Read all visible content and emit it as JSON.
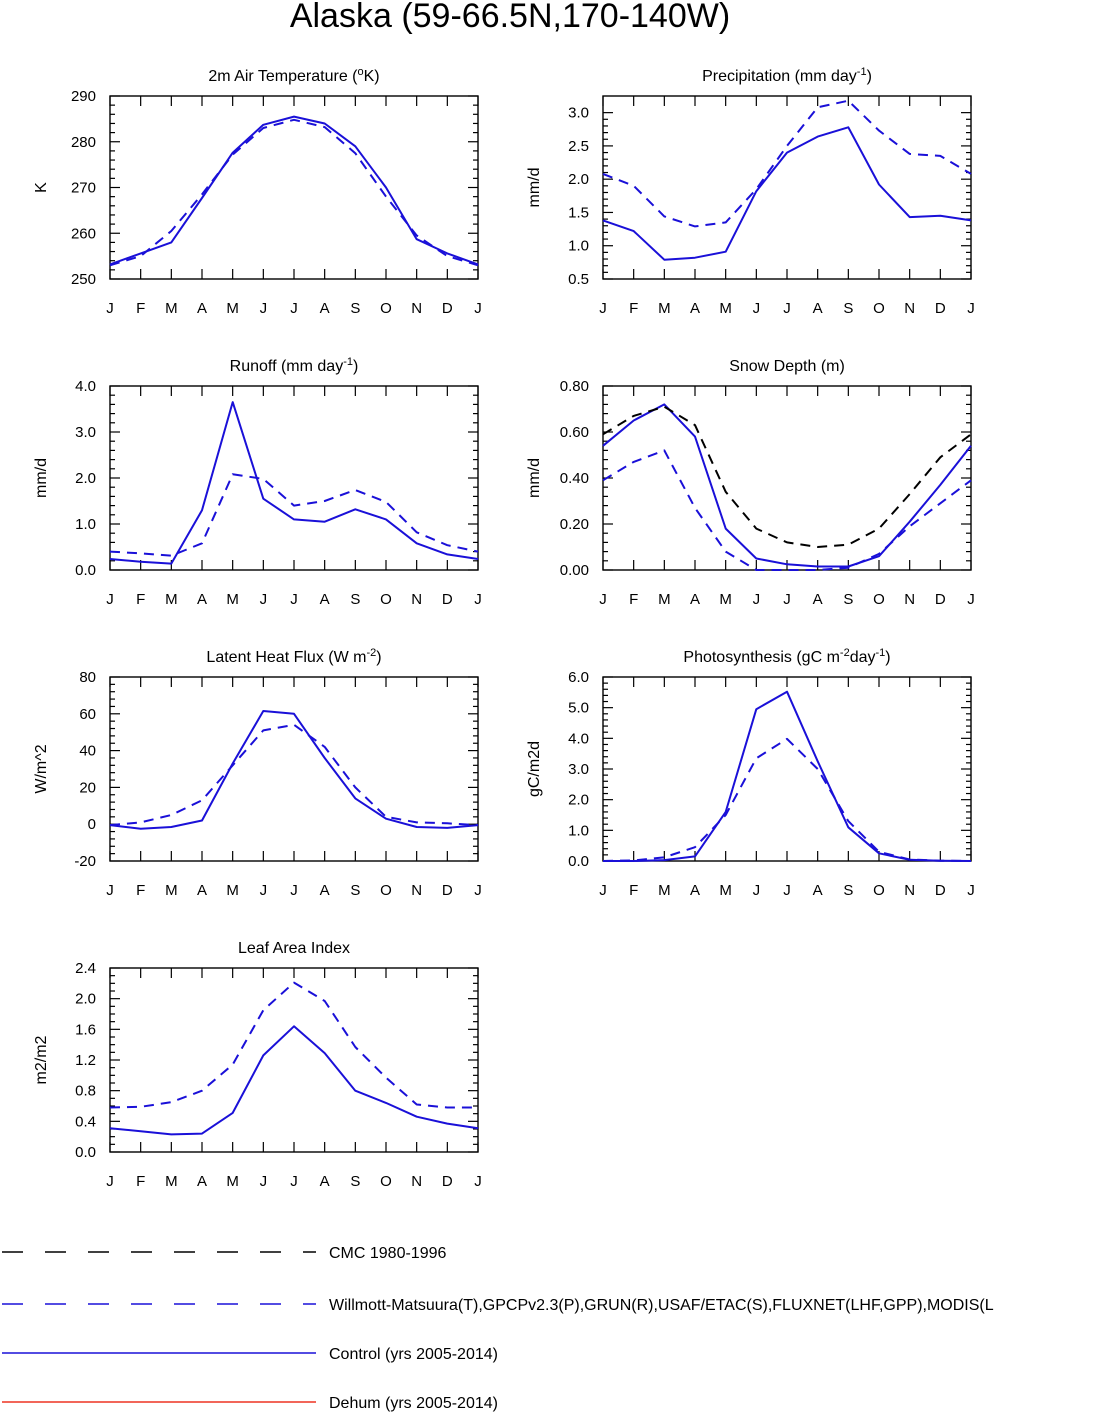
{
  "title": "Alaska (59-66.5N,170-140W)",
  "colors": {
    "model": "#1a10d8",
    "obs": "#1a10d8",
    "cmc": "#000000",
    "dehum": "#ee3322",
    "axis": "#000000"
  },
  "months": [
    "J",
    "F",
    "M",
    "A",
    "M",
    "J",
    "J",
    "A",
    "S",
    "O",
    "N",
    "D",
    "J"
  ],
  "legend": [
    {
      "label": "CMC 1980-1996",
      "style": "dash",
      "color": "#000000"
    },
    {
      "label": "Willmott-Matsuura(T),GPCPv2.3(P),GRUN(R),USAF/ETAC(S),FLUXNET(LHF,GPP),MODIS(L",
      "style": "dash",
      "color": "#1a10d8"
    },
    {
      "label": "Control (yrs 2005-2014)",
      "style": "solid",
      "color": "#1a10d8"
    },
    {
      "label": "Dehum (yrs 2005-2014)",
      "style": "solid",
      "color": "#ee3322"
    }
  ],
  "chart_data": [
    {
      "type": "line",
      "title": "2m Air Temperature (°K)",
      "title_parts": [
        {
          "t": "2m Air Temperature ("
        },
        {
          "t": "o",
          "sup": true
        },
        {
          "t": "K)"
        }
      ],
      "xlabel": "",
      "ylabel": "K",
      "ylim": [
        250,
        290
      ],
      "yticks": [
        250,
        260,
        270,
        280,
        290
      ],
      "ytick_labels": [
        "250",
        "260",
        "270",
        "280",
        "290"
      ],
      "minor_per_major": 5,
      "series": [
        {
          "name": "Control (yrs 2005-2014)",
          "style": "solid",
          "values": [
            253.2,
            255.6,
            258.0,
            267.7,
            277.6,
            283.7,
            285.5,
            284.0,
            279.0,
            270.0,
            258.7,
            255.6,
            253.2
          ]
        },
        {
          "name": "Willmott-Matsuura(T)",
          "style": "dash",
          "values": [
            253.0,
            255.0,
            260.5,
            268.5,
            277.2,
            283.0,
            284.8,
            283.2,
            277.5,
            268.0,
            259.5,
            255.0,
            253.0
          ]
        }
      ]
    },
    {
      "type": "line",
      "title": "Precipitation (mm day-1)",
      "title_parts": [
        {
          "t": "Precipitation (mm day"
        },
        {
          "t": "-1",
          "sup": true
        },
        {
          "t": ")"
        }
      ],
      "xlabel": "",
      "ylabel": "mm/d",
      "ylim": [
        0.5,
        3.25
      ],
      "yticks": [
        0.5,
        1.0,
        1.5,
        2.0,
        2.5,
        3.0
      ],
      "ytick_labels": [
        "0.5",
        "1.0",
        "1.5",
        "2.0",
        "2.5",
        "3.0"
      ],
      "minor_per_major": 5,
      "series": [
        {
          "name": "Control (yrs 2005-2014)",
          "style": "solid",
          "values": [
            1.38,
            1.22,
            0.79,
            0.82,
            0.91,
            1.82,
            2.4,
            2.64,
            2.78,
            1.92,
            1.43,
            1.45,
            1.38
          ]
        },
        {
          "name": "GPCPv2.3(P)",
          "style": "dash",
          "values": [
            2.08,
            1.9,
            1.44,
            1.29,
            1.35,
            1.85,
            2.5,
            3.08,
            3.18,
            2.73,
            2.38,
            2.35,
            2.08
          ]
        }
      ]
    },
    {
      "type": "line",
      "title": "Runoff (mm day-1)",
      "title_parts": [
        {
          "t": "Runoff (mm day"
        },
        {
          "t": "-1",
          "sup": true
        },
        {
          "t": ")"
        }
      ],
      "xlabel": "",
      "ylabel": "mm/d",
      "ylim": [
        0.0,
        4.0
      ],
      "yticks": [
        0.0,
        1.0,
        2.0,
        3.0,
        4.0
      ],
      "ytick_labels": [
        "0.0",
        "1.0",
        "2.0",
        "3.0",
        "4.0"
      ],
      "minor_per_major": 5,
      "series": [
        {
          "name": "Control (yrs 2005-2014)",
          "style": "solid",
          "values": [
            0.24,
            0.18,
            0.14,
            1.3,
            3.65,
            1.55,
            1.1,
            1.05,
            1.32,
            1.1,
            0.58,
            0.34,
            0.24
          ]
        },
        {
          "name": "GRUN(R)",
          "style": "dash",
          "values": [
            0.4,
            0.36,
            0.31,
            0.58,
            2.08,
            1.98,
            1.4,
            1.5,
            1.74,
            1.48,
            0.82,
            0.54,
            0.4
          ]
        }
      ]
    },
    {
      "type": "line",
      "title": "Snow Depth (m)",
      "title_parts": [
        {
          "t": "Snow Depth (m)"
        }
      ],
      "xlabel": "",
      "ylabel": "mm/d",
      "ylim": [
        0.0,
        0.8
      ],
      "yticks": [
        0.0,
        0.2,
        0.4,
        0.6,
        0.8
      ],
      "ytick_labels": [
        "0.00",
        "0.20",
        "0.40",
        "0.60",
        "0.80"
      ],
      "minor_per_major": 5,
      "series": [
        {
          "name": "Control (yrs 2005-2014)",
          "style": "solid",
          "values": [
            0.54,
            0.65,
            0.72,
            0.58,
            0.18,
            0.05,
            0.025,
            0.015,
            0.015,
            0.06,
            0.21,
            0.37,
            0.54
          ]
        },
        {
          "name": "USAF/ETAC(S)",
          "style": "dash",
          "values": [
            0.39,
            0.47,
            0.52,
            0.27,
            0.08,
            0.0,
            0.0,
            0.0,
            0.01,
            0.07,
            0.19,
            0.29,
            0.39
          ]
        },
        {
          "name": "CMC 1980-1996",
          "style": "dash-black",
          "values": [
            0.59,
            0.67,
            0.71,
            0.63,
            0.34,
            0.18,
            0.12,
            0.1,
            0.11,
            0.18,
            0.33,
            0.49,
            0.59
          ]
        }
      ]
    },
    {
      "type": "line",
      "title": "Latent Heat Flux (W m-2)",
      "title_parts": [
        {
          "t": "Latent Heat Flux (W m"
        },
        {
          "t": "-2",
          "sup": true
        },
        {
          "t": ")"
        }
      ],
      "xlabel": "",
      "ylabel": "W/m^2",
      "ylim": [
        -20,
        80
      ],
      "yticks": [
        -20,
        0,
        20,
        40,
        60,
        80
      ],
      "ytick_labels": [
        "-20",
        "0",
        "20",
        "40",
        "60",
        "80"
      ],
      "minor_per_major": 5,
      "series": [
        {
          "name": "Control (yrs 2005-2014)",
          "style": "solid",
          "values": [
            -0.5,
            -2.5,
            -1.5,
            2.0,
            33.0,
            61.5,
            60.0,
            36.0,
            14.0,
            3.0,
            -1.5,
            -2.0,
            -0.5
          ]
        },
        {
          "name": "FLUXNET(LHF)",
          "style": "dash",
          "values": [
            -0.5,
            1.0,
            5.0,
            13.0,
            32.0,
            51.0,
            54.0,
            42.0,
            20.0,
            4.0,
            1.0,
            0.5,
            -0.5
          ]
        }
      ]
    },
    {
      "type": "line",
      "title": "Photosynthesis (gC m-2day-1)",
      "title_parts": [
        {
          "t": "Photosynthesis (gC m"
        },
        {
          "t": "-2",
          "sup": true
        },
        {
          "t": "day"
        },
        {
          "t": "-1",
          "sup": true
        },
        {
          "t": ")"
        }
      ],
      "xlabel": "",
      "ylabel": "gC/m2d",
      "ylim": [
        0.0,
        6.0
      ],
      "yticks": [
        0.0,
        1.0,
        2.0,
        3.0,
        4.0,
        5.0,
        6.0
      ],
      "ytick_labels": [
        "0.0",
        "1.0",
        "2.0",
        "3.0",
        "4.0",
        "5.0",
        "6.0"
      ],
      "minor_per_major": 5,
      "series": [
        {
          "name": "Control (yrs 2005-2014)",
          "style": "solid",
          "values": [
            0.0,
            0.0,
            0.03,
            0.15,
            1.6,
            4.95,
            5.52,
            3.25,
            1.1,
            0.25,
            0.04,
            0.01,
            0.0
          ]
        },
        {
          "name": "FLUXNET(GPP)",
          "style": "dash",
          "values": [
            0.0,
            0.02,
            0.12,
            0.45,
            1.5,
            3.35,
            3.98,
            3.0,
            1.3,
            0.3,
            0.05,
            0.01,
            0.0
          ]
        }
      ]
    },
    {
      "type": "line",
      "title": "Leaf Area Index",
      "title_parts": [
        {
          "t": "Leaf Area Index"
        }
      ],
      "xlabel": "",
      "ylabel": "m2/m2",
      "ylim": [
        0.0,
        2.4
      ],
      "yticks": [
        0.0,
        0.4,
        0.8,
        1.2,
        1.6,
        2.0,
        2.4
      ],
      "ytick_labels": [
        "0.0",
        "0.4",
        "0.8",
        "1.2",
        "1.6",
        "2.0",
        "2.4"
      ],
      "minor_per_major": 4,
      "series": [
        {
          "name": "Control (yrs 2005-2014)",
          "style": "solid",
          "values": [
            0.31,
            0.27,
            0.23,
            0.24,
            0.51,
            1.26,
            1.64,
            1.29,
            0.8,
            0.64,
            0.46,
            0.37,
            0.31
          ]
        },
        {
          "name": "MODIS(LAI)",
          "style": "dash",
          "values": [
            0.58,
            0.59,
            0.65,
            0.8,
            1.14,
            1.85,
            2.21,
            1.97,
            1.37,
            0.97,
            0.62,
            0.58,
            0.58
          ]
        }
      ]
    }
  ]
}
